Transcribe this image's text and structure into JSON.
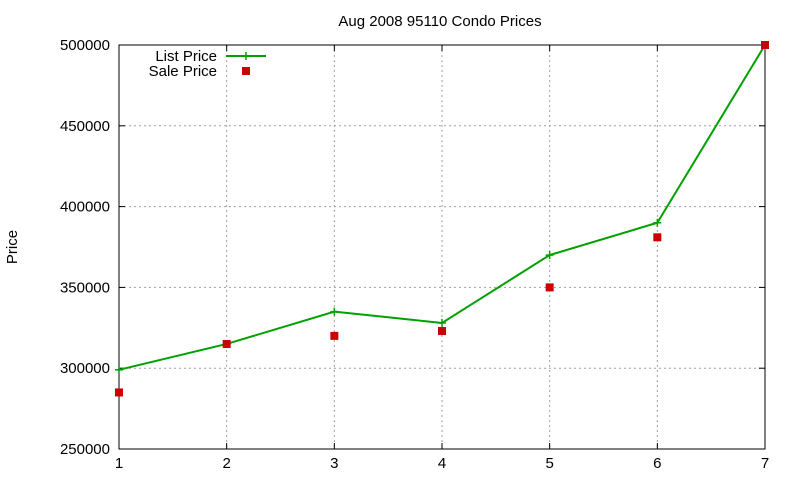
{
  "chart_data": {
    "type": "line",
    "title": "Aug 2008 95110 Condo Prices",
    "xlabel": "",
    "ylabel": "Price",
    "x": [
      1,
      2,
      3,
      4,
      5,
      6,
      7
    ],
    "xlim": [
      1,
      7
    ],
    "ylim": [
      250000,
      500000
    ],
    "xticks": [
      "1",
      "2",
      "3",
      "4",
      "5",
      "6",
      "7"
    ],
    "yticks": [
      "250000",
      "300000",
      "350000",
      "400000",
      "450000",
      "500000"
    ],
    "grid": true,
    "legend_position": "top-left",
    "series": [
      {
        "name": "List Price",
        "style": "line-with-plus-markers",
        "color": "#00a000",
        "values": [
          299000,
          315000,
          335000,
          328000,
          370000,
          390000,
          500000
        ]
      },
      {
        "name": "Sale Price",
        "style": "square-markers",
        "color": "#cc0000",
        "values": [
          285000,
          315000,
          320000,
          323000,
          350000,
          381000,
          500000
        ]
      }
    ]
  }
}
